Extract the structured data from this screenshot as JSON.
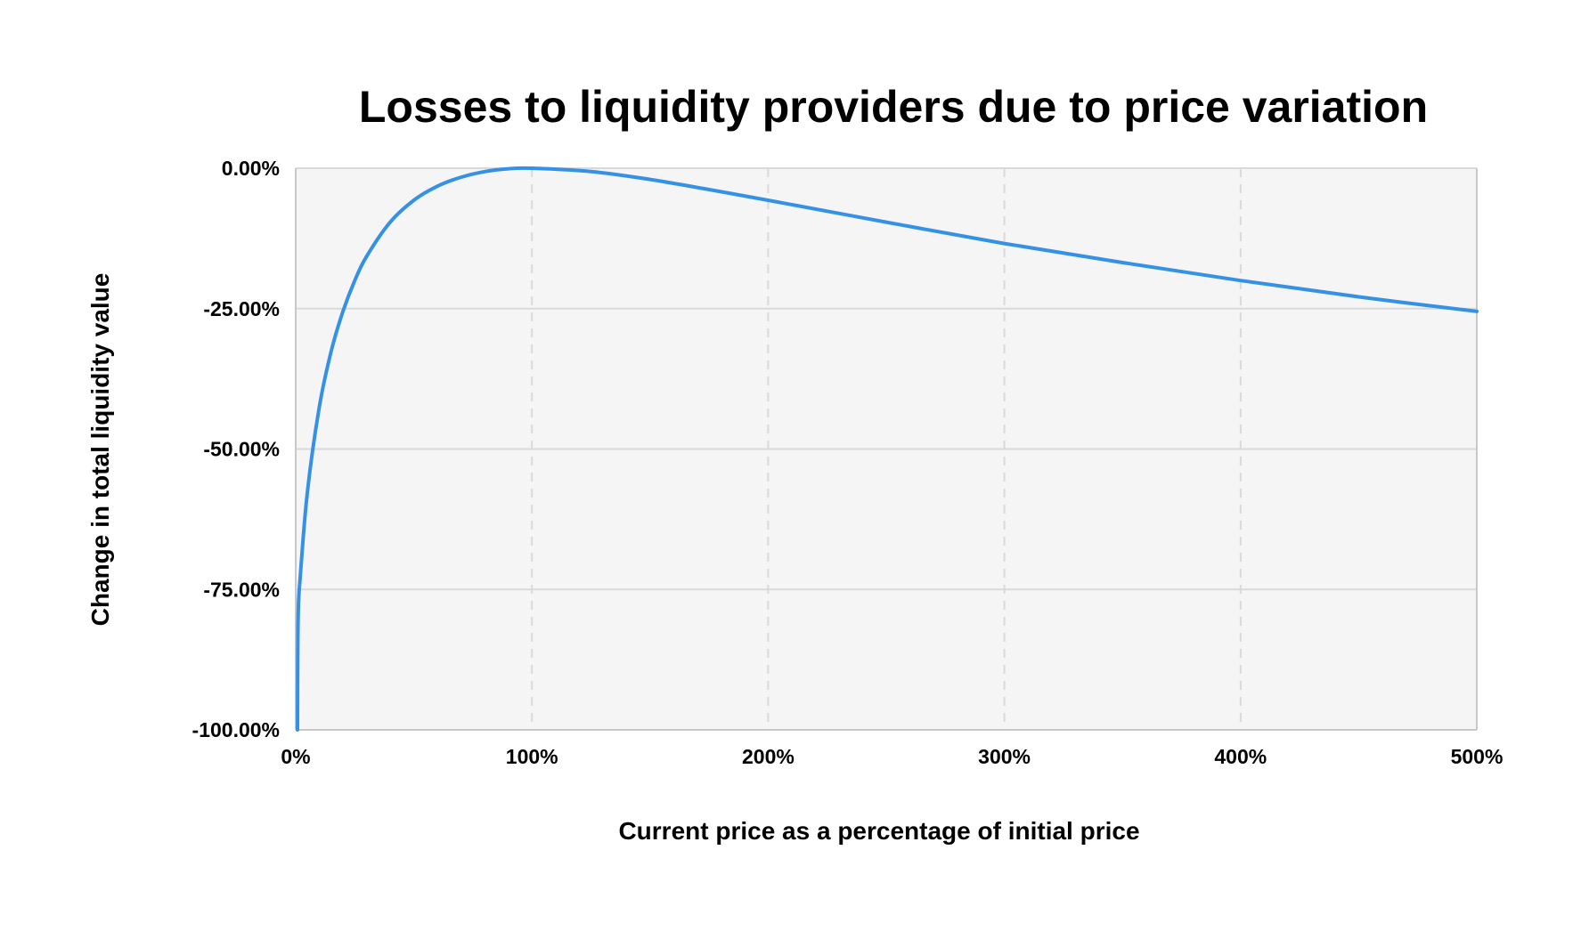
{
  "chart_data": {
    "type": "line",
    "title": "Losses to liquidity providers due to price variation",
    "xlabel": "Current price as a percentage of initial price",
    "ylabel": "Change in total liquidity value",
    "xlim": [
      0,
      500
    ],
    "ylim": [
      -100,
      0
    ],
    "x_ticks": [
      0,
      100,
      200,
      300,
      400,
      500
    ],
    "x_tick_labels": [
      "0%",
      "100%",
      "200%",
      "300%",
      "400%",
      "500%"
    ],
    "y_ticks": [
      0,
      -25,
      -50,
      -75,
      -100
    ],
    "y_tick_labels": [
      "0.00%",
      "-25.00%",
      "-50.00%",
      "-75.00%",
      "-100.00%"
    ],
    "grid": true,
    "legend": "none",
    "colors": {
      "line": "#3591e6",
      "plot_background": "#f5f5f5",
      "gridline": "#d9d9d9",
      "axis": "#c8c8c8",
      "text": "#000000"
    },
    "series": [
      {
        "x": [
          1,
          2,
          5,
          10,
          15,
          20,
          25,
          30,
          40,
          50,
          60,
          70,
          80,
          90,
          100,
          125,
          150,
          175,
          200,
          250,
          300,
          350,
          400,
          450,
          500
        ],
        "values": [
          -80.2,
          -72.3,
          -57.4,
          -42.5,
          -32.6,
          -25.5,
          -20.0,
          -15.7,
          -9.6,
          -5.7,
          -3.2,
          -1.6,
          -0.6,
          -0.1,
          0.0,
          -0.6,
          -2.0,
          -3.8,
          -5.7,
          -9.6,
          -13.4,
          -16.8,
          -20.0,
          -22.9,
          -25.5
        ]
      }
    ]
  }
}
